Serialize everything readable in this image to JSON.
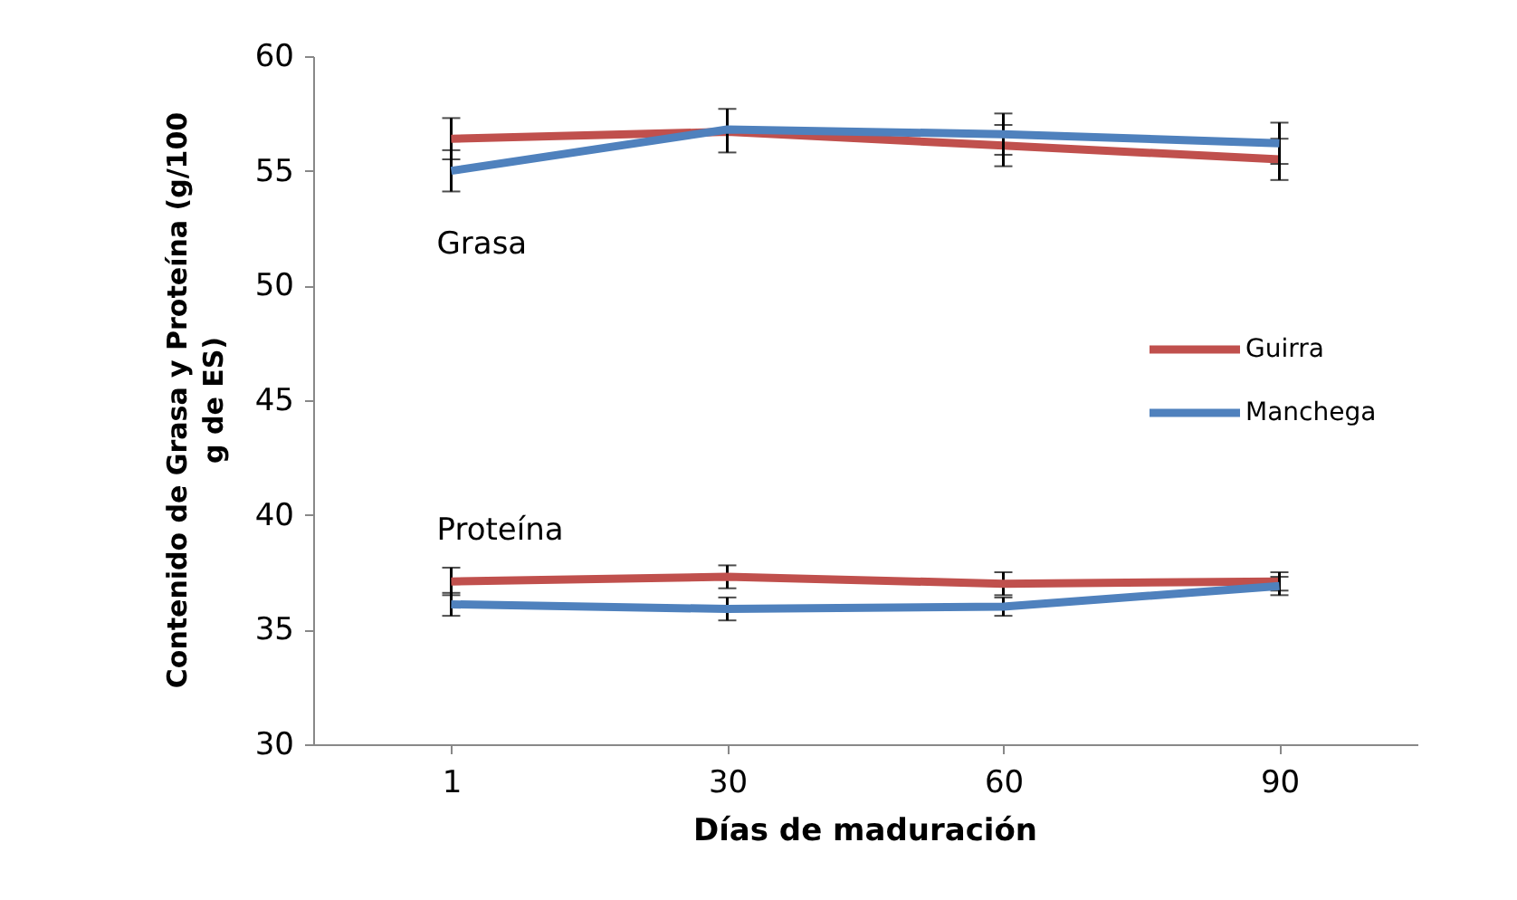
{
  "chart_data": {
    "type": "line",
    "xlabel": "Días de maduración",
    "ylabel": "Contenido de Grasa y Proteína (g/100 g de ES)",
    "categories": [
      "1",
      "30",
      "60",
      "90"
    ],
    "series": [
      {
        "name": "Guirra",
        "color": "#c0504d",
        "values": [
          56.4,
          56.7,
          56.1,
          55.5
        ],
        "errors": [
          0.9,
          null,
          0.9,
          0.9
        ]
      },
      {
        "name": "Manchega",
        "color": "#4f81bd",
        "values": [
          55.0,
          56.8,
          56.6,
          56.2
        ],
        "errors": [
          0.9,
          [
            55.8,
            57.7
          ],
          0.9,
          0.9
        ]
      },
      {
        "color": "#c0504d",
        "values": [
          37.1,
          37.3,
          37.0,
          37.1
        ],
        "errors": [
          0.6,
          0.5,
          0.5,
          0.4
        ]
      },
      {
        "color": "#4f81bd",
        "values": [
          36.1,
          35.9,
          36.0,
          36.9
        ],
        "errors": [
          0.5,
          0.5,
          0.4,
          0.4
        ]
      }
    ],
    "annotations": [
      "Grasa",
      "Proteína"
    ],
    "ylim": [
      30,
      60
    ],
    "yticks": [
      30,
      35,
      40,
      45,
      50,
      55,
      60
    ],
    "grid": false,
    "legend": "right",
    "marker": "none",
    "line_style": "solid"
  }
}
